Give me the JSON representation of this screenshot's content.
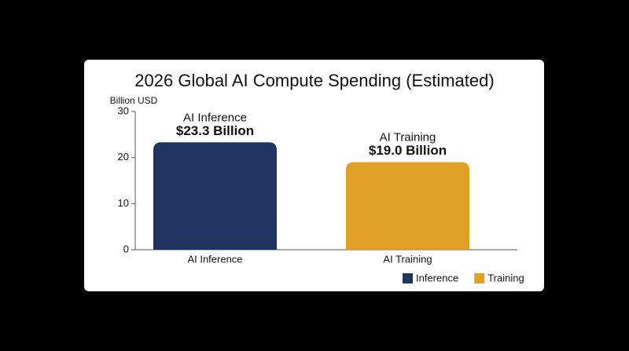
{
  "chart_data": {
    "type": "bar",
    "title": "2026 Global AI Compute Spending (Estimated)",
    "y_label": "Billion USD",
    "categories": [
      "AI Inference",
      "AI Training"
    ],
    "series": [
      {
        "name": "Inference",
        "color": "#1f3461",
        "values": [
          23.3,
          null
        ],
        "value_labels": [
          "$23.3 Billion",
          null
        ]
      },
      {
        "name": "Training",
        "color": "#e09f25",
        "values": [
          null,
          19.0
        ],
        "value_labels": [
          null,
          "$19.0 Billion"
        ]
      }
    ],
    "ylim": [
      0,
      30
    ],
    "yticks": [
      0,
      10,
      20,
      30
    ],
    "legend": "bottom-right"
  }
}
